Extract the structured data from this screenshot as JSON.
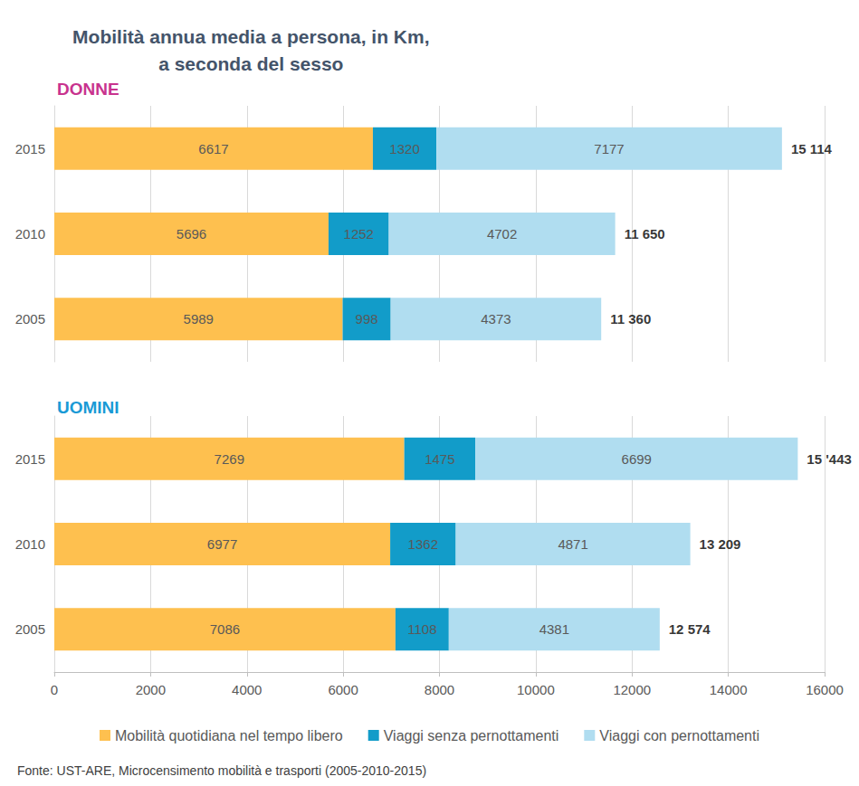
{
  "title": "Mobilità annua media a persona, in Km,\na seconda del sesso",
  "source": "Fonte: UST-ARE, Microcensimento mobilità e trasporti (2005-2010-2015)",
  "chart_data": [
    {
      "type": "bar",
      "title": "DONNE",
      "orientation": "horizontal",
      "stacked": true,
      "data_labels": true,
      "grid": true,
      "tick_labels": "y",
      "categories": [
        "2005",
        "2010",
        "2015"
      ],
      "xlim": [
        0,
        16000
      ],
      "xticks": [
        0,
        2000,
        4000,
        6000,
        8000,
        10000,
        12000,
        14000,
        16000
      ],
      "series": [
        {
          "name": "Mobilità quotidiana nel tempo libero",
          "color": "#FEC04F",
          "values": [
            5989,
            5696,
            6617
          ]
        },
        {
          "name": "Viaggi senza pernottamenti",
          "color": "#129CC9",
          "values": [
            998,
            1252,
            1320
          ]
        },
        {
          "name": "Viaggi con pernottamenti",
          "color": "#B0DDF0",
          "values": [
            4373,
            4702,
            7177
          ]
        }
      ],
      "totals": [
        {
          "value": 11360,
          "label": "11 360"
        },
        {
          "value": 11650,
          "label": "11 650"
        },
        {
          "value": 15114,
          "label": "15 114"
        }
      ]
    },
    {
      "type": "bar",
      "title": "UOMINI",
      "orientation": "horizontal",
      "stacked": true,
      "data_labels": true,
      "grid": true,
      "tick_labels": true,
      "legend": "bottom",
      "categories": [
        "2005",
        "2010",
        "2015"
      ],
      "xlim": [
        0,
        16000
      ],
      "xticks": [
        0,
        2000,
        4000,
        6000,
        8000,
        10000,
        12000,
        14000,
        16000
      ],
      "series": [
        {
          "name": "Mobilità quotidiana nel tempo libero",
          "color": "#FEC04F",
          "values": [
            7086,
            6977,
            7269
          ]
        },
        {
          "name": "Viaggi senza pernottamenti",
          "color": "#129CC9",
          "values": [
            1108,
            1362,
            1475
          ]
        },
        {
          "name": "Viaggi con pernottamenti",
          "color": "#B0DDF0",
          "values": [
            4381,
            4871,
            6699
          ]
        }
      ],
      "totals": [
        {
          "value": 12574,
          "label": "12 574"
        },
        {
          "value": 13209,
          "label": "13 209"
        },
        {
          "value": 15443,
          "label": "15 '443"
        }
      ]
    }
  ]
}
